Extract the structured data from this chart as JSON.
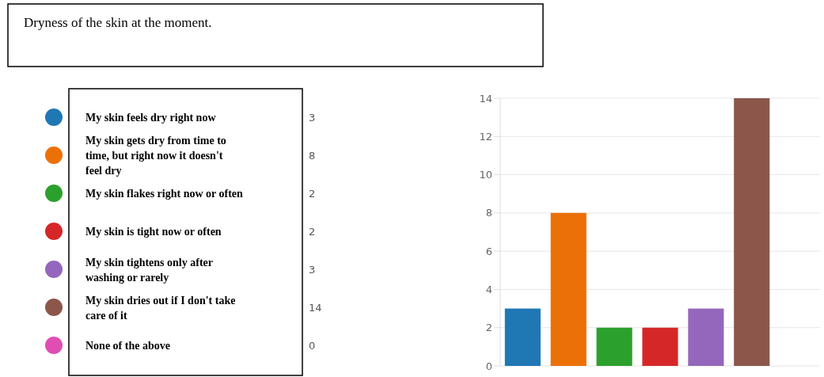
{
  "chart_data": {
    "type": "bar",
    "title": "Dryness of the skin at the moment.",
    "categories": [
      null,
      null,
      null,
      null,
      null,
      null,
      null
    ],
    "series": [
      {
        "name": "My skin feels dry right now",
        "color": "#1f77b4",
        "values": [
          3,
          null,
          null,
          null,
          null,
          null,
          null
        ]
      },
      {
        "name": "My skin gets dry from time to time, but right now it doesn't feel dry",
        "color": "#ec7008",
        "values": [
          null,
          8,
          null,
          null,
          null,
          null,
          null
        ]
      },
      {
        "name": "My skin flakes right now or often",
        "color": "#2ca02c",
        "values": [
          null,
          null,
          2,
          null,
          null,
          null,
          null
        ]
      },
      {
        "name": "My skin is tight now or often",
        "color": "#d62728",
        "values": [
          null,
          null,
          null,
          2,
          null,
          null,
          null
        ]
      },
      {
        "name": "My skin tightens only after washing or rarely",
        "color": "#9467bd",
        "values": [
          null,
          null,
          null,
          null,
          3,
          null,
          null
        ]
      },
      {
        "name": "My skin dries out if I don't take care of it",
        "color": "#8c564b",
        "values": [
          null,
          null,
          null,
          null,
          null,
          14,
          null
        ]
      },
      {
        "name": "None of the above",
        "color": "#e04eb4",
        "values": [
          null,
          null,
          null,
          null,
          null,
          null,
          0
        ]
      }
    ],
    "annotations": [
      "3",
      "8",
      "2",
      "2",
      "3",
      "14",
      "0"
    ],
    "ylim": [
      0,
      14
    ],
    "yticks": [
      0,
      2,
      4,
      6,
      8,
      10,
      12,
      14
    ],
    "grid": "y",
    "legend": "left",
    "tick_labels": "y"
  }
}
